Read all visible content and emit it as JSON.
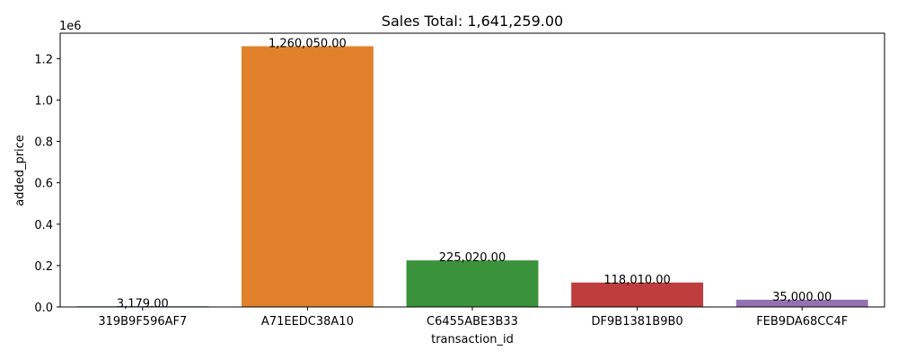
{
  "chart_data": {
    "type": "bar",
    "title": "Sales Total: 1,641,259.00",
    "xlabel": "transaction_id",
    "ylabel": "added_price",
    "xlabel_color": "#800080",
    "ylabel_color": "#0000ff",
    "y_offset_label": "1e6",
    "ylim": [
      0,
      1323052.5
    ],
    "y_ticks": [
      0,
      200000,
      400000,
      600000,
      800000,
      1000000,
      1200000
    ],
    "y_tick_labels": [
      "0.0",
      "0.2",
      "0.4",
      "0.6",
      "0.8",
      "1.0",
      "1.2"
    ],
    "grid": false,
    "legend": "none",
    "categories": [
      "319B9F596AF7",
      "A71EEDC38A10",
      "C6455ABE3B33",
      "DF9B1381B9B0",
      "FEB9DA68CC4F"
    ],
    "values": [
      3179,
      1260050,
      225020,
      118010,
      35000
    ],
    "value_labels": [
      "3,179.00",
      "1,260,050.00",
      "225,020.00",
      "118,010.00",
      "35,000.00"
    ],
    "colors": [
      "#3274a1",
      "#e1812c",
      "#3a923a",
      "#c03d3e",
      "#9372b2"
    ]
  }
}
